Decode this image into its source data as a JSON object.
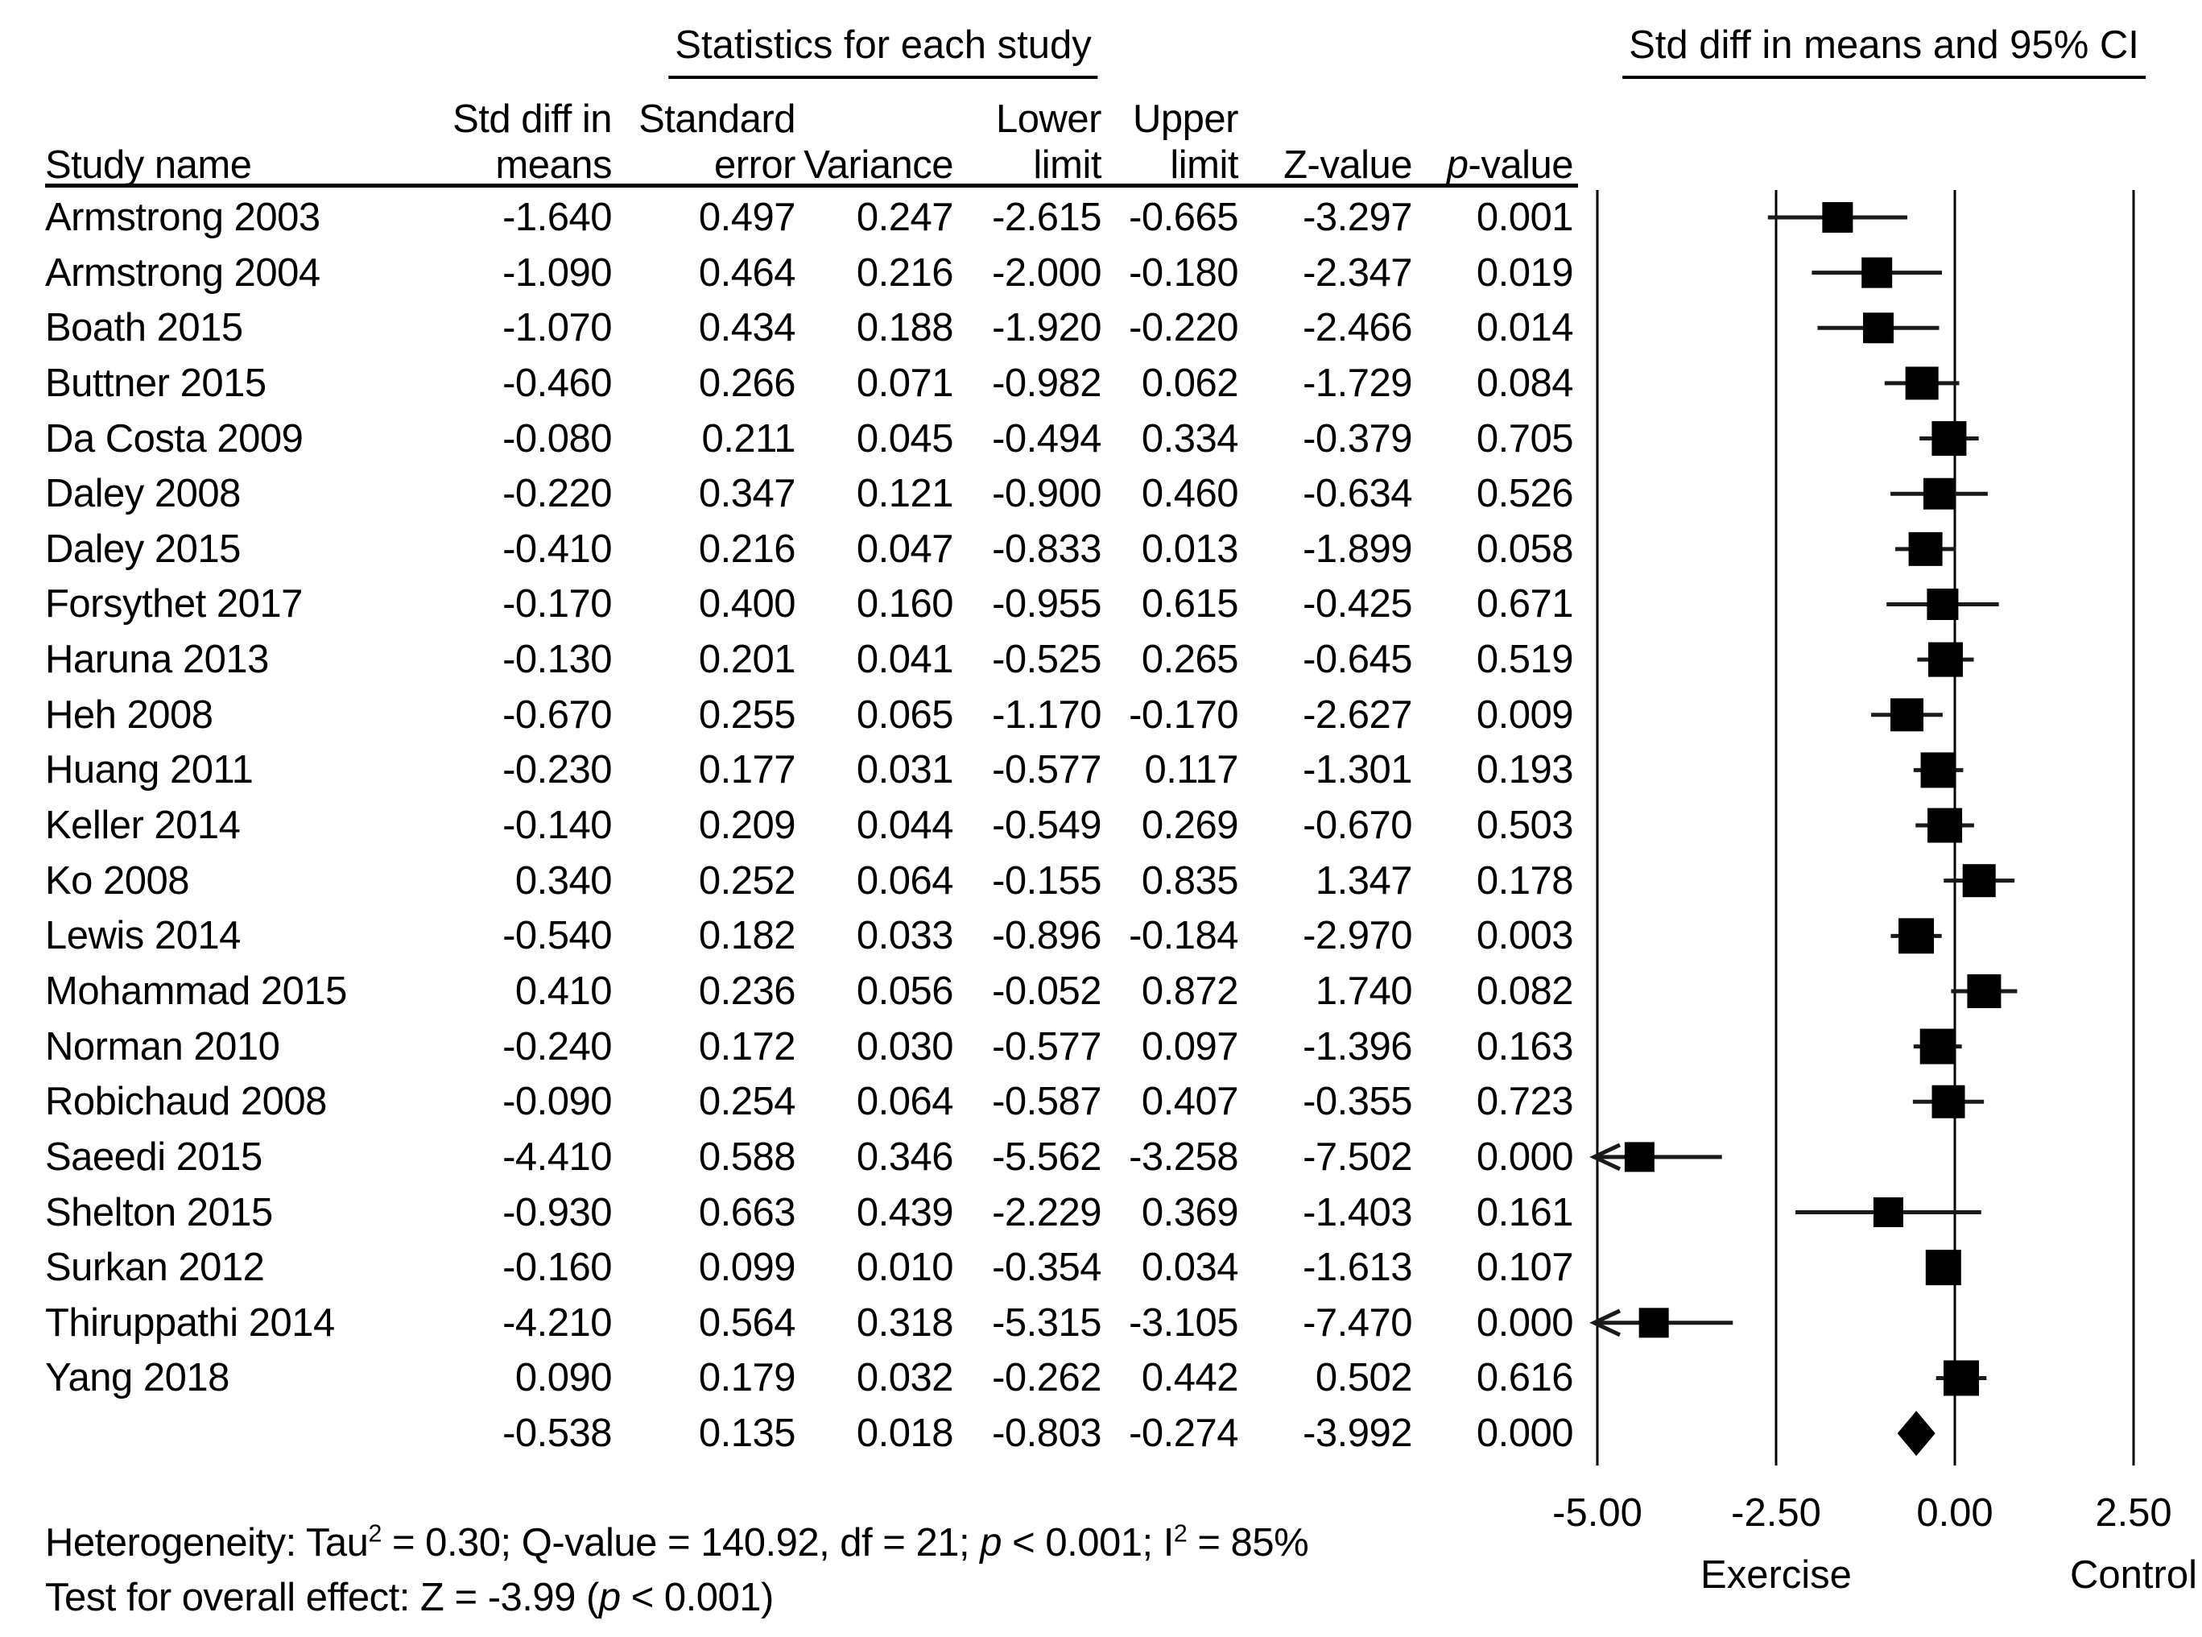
{
  "titles": {
    "stats_header": "Statistics for each study",
    "plot_header": "Std diff in means and 95% CI"
  },
  "table": {
    "study_col_header": "Study name",
    "columns": [
      {
        "id": "means",
        "line1": "Std diff in",
        "line2": "means"
      },
      {
        "id": "error",
        "line1": "Standard",
        "line2": "error"
      },
      {
        "id": "variance",
        "line1": "",
        "line2": "Variance"
      },
      {
        "id": "lower",
        "line1": "Lower",
        "line2": "limit"
      },
      {
        "id": "upper",
        "line1": "Upper",
        "line2": "limit"
      },
      {
        "id": "z",
        "line1": "",
        "line2": "Z-value"
      },
      {
        "id": "p",
        "line1": "",
        "line2_segments": [
          {
            "t": "p",
            "italic": true
          },
          {
            "t": "-value"
          }
        ]
      }
    ]
  },
  "chart_data": {
    "type": "forest",
    "effect_label": "Std diff in means",
    "column_meanings": [
      "Std diff in means",
      "Standard error",
      "Variance",
      "Lower limit",
      "Upper limit",
      "Z-value",
      "p-value"
    ],
    "rows": [
      {
        "name": "Armstrong 2003",
        "values": [
          "-1.640",
          "0.497",
          "0.247",
          "-2.615",
          "-0.665",
          "-3.297",
          "0.001"
        ],
        "marker": "square"
      },
      {
        "name": "Armstrong 2004",
        "values": [
          "-1.090",
          "0.464",
          "0.216",
          "-2.000",
          "-0.180",
          "-2.347",
          "0.019"
        ],
        "marker": "square"
      },
      {
        "name": "Boath 2015",
        "values": [
          "-1.070",
          "0.434",
          "0.188",
          "-1.920",
          "-0.220",
          "-2.466",
          "0.014"
        ],
        "marker": "square"
      },
      {
        "name": "Buttner 2015",
        "values": [
          "-0.460",
          "0.266",
          "0.071",
          "-0.982",
          "0.062",
          "-1.729",
          "0.084"
        ],
        "marker": "square"
      },
      {
        "name": "Da Costa 2009",
        "values": [
          "-0.080",
          "0.211",
          "0.045",
          "-0.494",
          "0.334",
          "-0.379",
          "0.705"
        ],
        "marker": "square"
      },
      {
        "name": "Daley 2008",
        "values": [
          "-0.220",
          "0.347",
          "0.121",
          "-0.900",
          "0.460",
          "-0.634",
          "0.526"
        ],
        "marker": "square"
      },
      {
        "name": "Daley 2015",
        "values": [
          "-0.410",
          "0.216",
          "0.047",
          "-0.833",
          "0.013",
          "-1.899",
          "0.058"
        ],
        "marker": "square"
      },
      {
        "name": "Forsythet 2017",
        "values": [
          "-0.170",
          "0.400",
          "0.160",
          "-0.955",
          "0.615",
          "-0.425",
          "0.671"
        ],
        "marker": "square"
      },
      {
        "name": "Haruna 2013",
        "values": [
          "-0.130",
          "0.201",
          "0.041",
          "-0.525",
          "0.265",
          "-0.645",
          "0.519"
        ],
        "marker": "square"
      },
      {
        "name": "Heh 2008",
        "values": [
          "-0.670",
          "0.255",
          "0.065",
          "-1.170",
          "-0.170",
          "-2.627",
          "0.009"
        ],
        "marker": "square"
      },
      {
        "name": "Huang 2011",
        "values": [
          "-0.230",
          "0.177",
          "0.031",
          "-0.577",
          "0.117",
          "-1.301",
          "0.193"
        ],
        "marker": "square"
      },
      {
        "name": "Keller 2014",
        "values": [
          "-0.140",
          "0.209",
          "0.044",
          "-0.549",
          "0.269",
          "-0.670",
          "0.503"
        ],
        "marker": "square"
      },
      {
        "name": "Ko 2008",
        "values": [
          "0.340",
          "0.252",
          "0.064",
          "-0.155",
          "0.835",
          "1.347",
          "0.178"
        ],
        "marker": "square"
      },
      {
        "name": "Lewis 2014",
        "values": [
          "-0.540",
          "0.182",
          "0.033",
          "-0.896",
          "-0.184",
          "-2.970",
          "0.003"
        ],
        "marker": "square"
      },
      {
        "name": "Mohammad 2015",
        "values": [
          "0.410",
          "0.236",
          "0.056",
          "-0.052",
          "0.872",
          "1.740",
          "0.082"
        ],
        "marker": "square"
      },
      {
        "name": "Norman 2010",
        "values": [
          "-0.240",
          "0.172",
          "0.030",
          "-0.577",
          "0.097",
          "-1.396",
          "0.163"
        ],
        "marker": "square"
      },
      {
        "name": "Robichaud 2008",
        "values": [
          "-0.090",
          "0.254",
          "0.064",
          "-0.587",
          "0.407",
          "-0.355",
          "0.723"
        ],
        "marker": "square"
      },
      {
        "name": "Saeedi 2015",
        "values": [
          "-4.410",
          "0.588",
          "0.346",
          "-5.562",
          "-3.258",
          "-7.502",
          "0.000"
        ],
        "marker": "square"
      },
      {
        "name": "Shelton 2015",
        "values": [
          "-0.930",
          "0.663",
          "0.439",
          "-2.229",
          "0.369",
          "-1.403",
          "0.161"
        ],
        "marker": "square"
      },
      {
        "name": "Surkan 2012",
        "values": [
          "-0.160",
          "0.099",
          "0.010",
          "-0.354",
          "0.034",
          "-1.613",
          "0.107"
        ],
        "marker": "square"
      },
      {
        "name": "Thiruppathi 2014",
        "values": [
          "-4.210",
          "0.564",
          "0.318",
          "-5.315",
          "-3.105",
          "-7.470",
          "0.000"
        ],
        "marker": "square"
      },
      {
        "name": "Yang 2018",
        "values": [
          "0.090",
          "0.179",
          "0.032",
          "-0.262",
          "0.442",
          "0.502",
          "0.616"
        ],
        "marker": "square"
      },
      {
        "name": "",
        "values": [
          "-0.538",
          "0.135",
          "0.018",
          "-0.803",
          "-0.274",
          "-3.992",
          "0.000"
        ],
        "marker": "diamond"
      }
    ],
    "axis": {
      "min": -5.0,
      "max": 2.5,
      "ticks": [
        {
          "label": "-5.00",
          "value": -5.0
        },
        {
          "label": "-2.50",
          "value": -2.5
        },
        {
          "label": "0.00",
          "value": 0.0
        },
        {
          "label": "2.50",
          "value": 2.5
        }
      ],
      "left_group_label": "Exercise",
      "right_group_label": "Control"
    }
  },
  "footer": {
    "line1_segments": [
      {
        "t": "Heterogeneity: Tau"
      },
      {
        "t": "2",
        "sup": true
      },
      {
        "t": " = 0.30; Q-value = 140.92, df = 21; "
      },
      {
        "t": "p",
        "italic": true
      },
      {
        "t": " < 0.001; I"
      },
      {
        "t": "2",
        "sup": true
      },
      {
        "t": " = 85%"
      }
    ],
    "line2_segments": [
      {
        "t": "Test for overall effect: Z = -3.99 ("
      },
      {
        "t": "p",
        "italic": true
      },
      {
        "t": " < 0.001)"
      }
    ]
  },
  "colors": {
    "ink": "#000000",
    "whisker": "#1a1a1a",
    "background": "#ffffff"
  }
}
